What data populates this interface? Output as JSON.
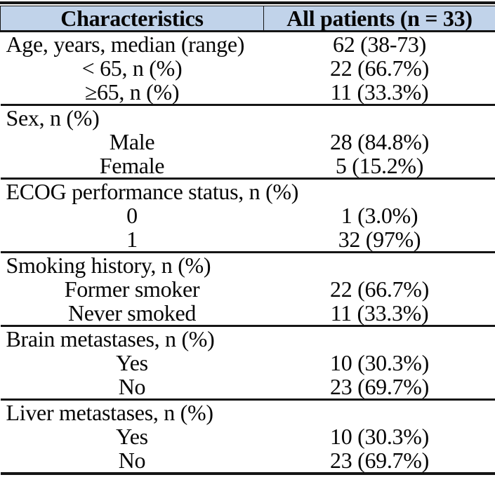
{
  "colors": {
    "header_bg": "#c1d3ea",
    "border": "#151515",
    "text": "#060606"
  },
  "table": {
    "header": {
      "characteristics": "Characteristics",
      "all_patients": "All patients (n = 33)"
    },
    "sections": [
      {
        "rows": [
          {
            "label": "Age, years, median (range)",
            "value": "62 (38-73)"
          },
          {
            "label": "< 65, n (%)",
            "value": "22 (66.7%)"
          },
          {
            "label": "≥65, n (%)",
            "value": "11 (33.3%)"
          }
        ]
      },
      {
        "rows": [
          {
            "label": "Sex, n (%)",
            "value": ""
          },
          {
            "label": "Male",
            "value": "28 (84.8%)"
          },
          {
            "label": "Female",
            "value": "5 (15.2%)"
          }
        ]
      },
      {
        "rows": [
          {
            "label": "ECOG performance status, n (%)",
            "value": ""
          },
          {
            "label": "0",
            "value": "1 (3.0%)"
          },
          {
            "label": "1",
            "value": "32 (97%)"
          }
        ]
      },
      {
        "rows": [
          {
            "label": "Smoking history, n (%)",
            "value": ""
          },
          {
            "label": "Former smoker",
            "value": "22 (66.7%)"
          },
          {
            "label": "Never smoked",
            "value": "11 (33.3%)"
          }
        ]
      },
      {
        "rows": [
          {
            "label": "Brain metastases, n (%)",
            "value": ""
          },
          {
            "label": "Yes",
            "value": "10 (30.3%)"
          },
          {
            "label": "No",
            "value": "23 (69.7%)"
          }
        ]
      },
      {
        "rows": [
          {
            "label": "Liver metastases, n (%)",
            "value": ""
          },
          {
            "label": "Yes",
            "value": "10 (30.3%)"
          },
          {
            "label": "No",
            "value": "23 (69.7%)"
          }
        ]
      }
    ]
  }
}
